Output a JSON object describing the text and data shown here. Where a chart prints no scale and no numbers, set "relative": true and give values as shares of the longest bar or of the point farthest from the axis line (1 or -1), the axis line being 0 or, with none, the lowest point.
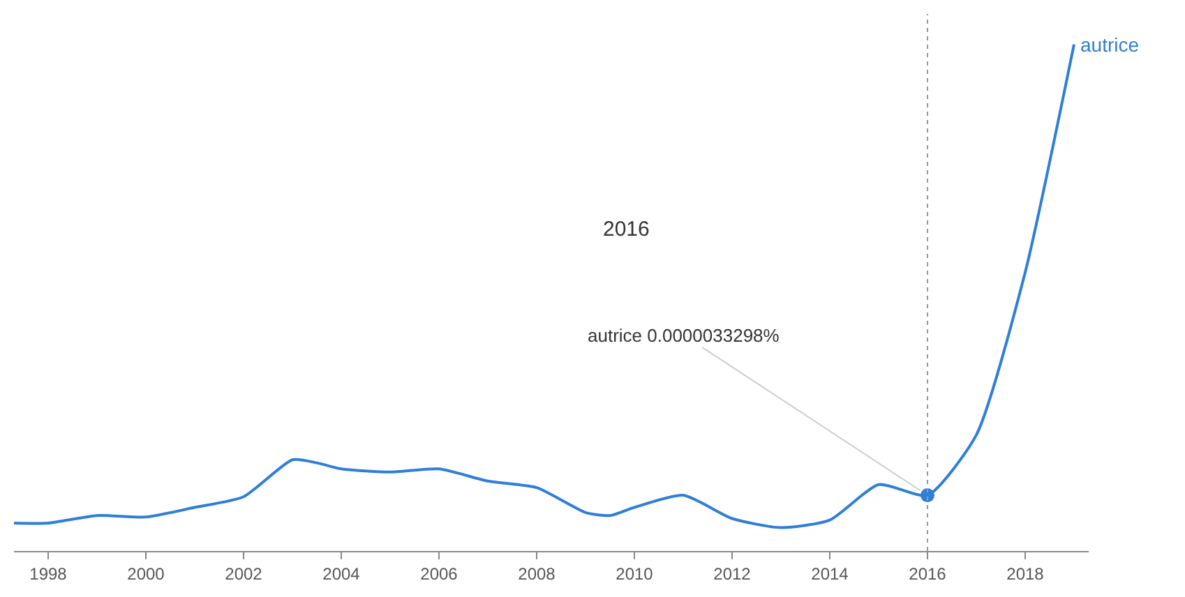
{
  "chart_data": {
    "type": "line",
    "relative": true,
    "x": [
      1997.3,
      1998,
      1999,
      2000,
      2001,
      2002,
      2003,
      2003.5,
      2004,
      2005,
      2006,
      2007,
      2008,
      2009,
      2009.5,
      2010,
      2011,
      2012,
      2013,
      2014,
      2015,
      2016,
      2017,
      2018,
      2019
    ],
    "series": [
      {
        "name": "autrice",
        "color": "#2f7ed8",
        "values": [
          0.055,
          0.055,
          0.07,
          0.067,
          0.086,
          0.107,
          0.18,
          0.174,
          0.162,
          0.156,
          0.162,
          0.138,
          0.125,
          0.076,
          0.07,
          0.086,
          0.11,
          0.064,
          0.046,
          0.061,
          0.131,
          0.11,
          0.229,
          0.55,
          1.0
        ]
      }
    ],
    "xlim": [
      1997.3,
      2019.3
    ],
    "xticks": [
      1998,
      2000,
      2002,
      2004,
      2006,
      2008,
      2010,
      2012,
      2014,
      2016,
      2018
    ],
    "ref_lines": [
      {
        "axis": "x",
        "value": 2016,
        "color": "#999999",
        "line_style": "dotted"
      }
    ],
    "annotations": [
      "2016",
      {
        "text": "autrice 0.0000033298%",
        "x": 2016,
        "y": 0.11
      }
    ],
    "marker": "none",
    "line_style": "solid",
    "legend": false
  }
}
